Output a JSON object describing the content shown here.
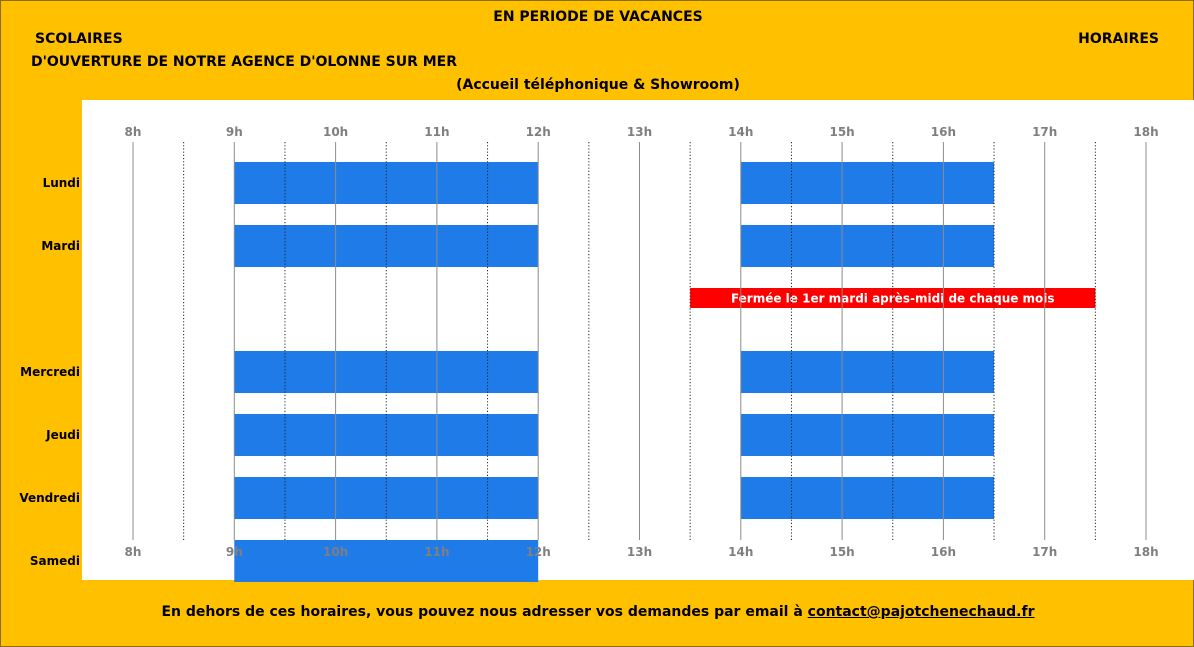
{
  "header": {
    "line1": "EN PERIODE DE VACANCES",
    "line2_left": "SCOLAIRES",
    "line2_right": "HORAIRES",
    "line3": "D'OUVERTURE DE NOTRE AGENCE D'OLONNE SUR MER",
    "line4": "(Accueil téléphonique & Showroom)"
  },
  "footer": {
    "text": "En dehors de ces horaires, vous pouvez nous adresser vos demandes par email à ",
    "email": "contact@pajotchenechaud.fr"
  },
  "colors": {
    "background": "#FFC000",
    "bar": "#1F7BE8",
    "closed": "#FF0000"
  },
  "chart_data": {
    "type": "bar",
    "orientation": "horizontal",
    "x_ticks": [
      "8h",
      "9h",
      "10h",
      "11h",
      "12h",
      "13h",
      "14h",
      "15h",
      "16h",
      "17h",
      "18h"
    ],
    "xlim": [
      8,
      18
    ],
    "categories": [
      "Lundi",
      "Mardi",
      "",
      "Mercredi",
      "Jeudi",
      "Vendredi",
      "Samedi"
    ],
    "series": [
      {
        "values": [
          [
            9,
            12
          ],
          [
            9,
            12
          ],
          null,
          [
            9,
            12
          ],
          [
            9,
            12
          ],
          [
            9,
            12
          ],
          [
            9,
            12
          ]
        ]
      },
      {
        "values": [
          [
            14,
            16.5
          ],
          [
            14,
            16.5
          ],
          null,
          [
            14,
            16.5
          ],
          [
            14,
            16.5
          ],
          [
            14,
            16.5
          ],
          null
        ]
      }
    ],
    "annotations": [
      {
        "category_index": 2,
        "start": 13.5,
        "end": 17.5,
        "text": "Fermée le 1er mardi après-midi de chaque mois"
      }
    ],
    "grid": "vertical lines: solid at whole hours, dotted at half hours"
  }
}
